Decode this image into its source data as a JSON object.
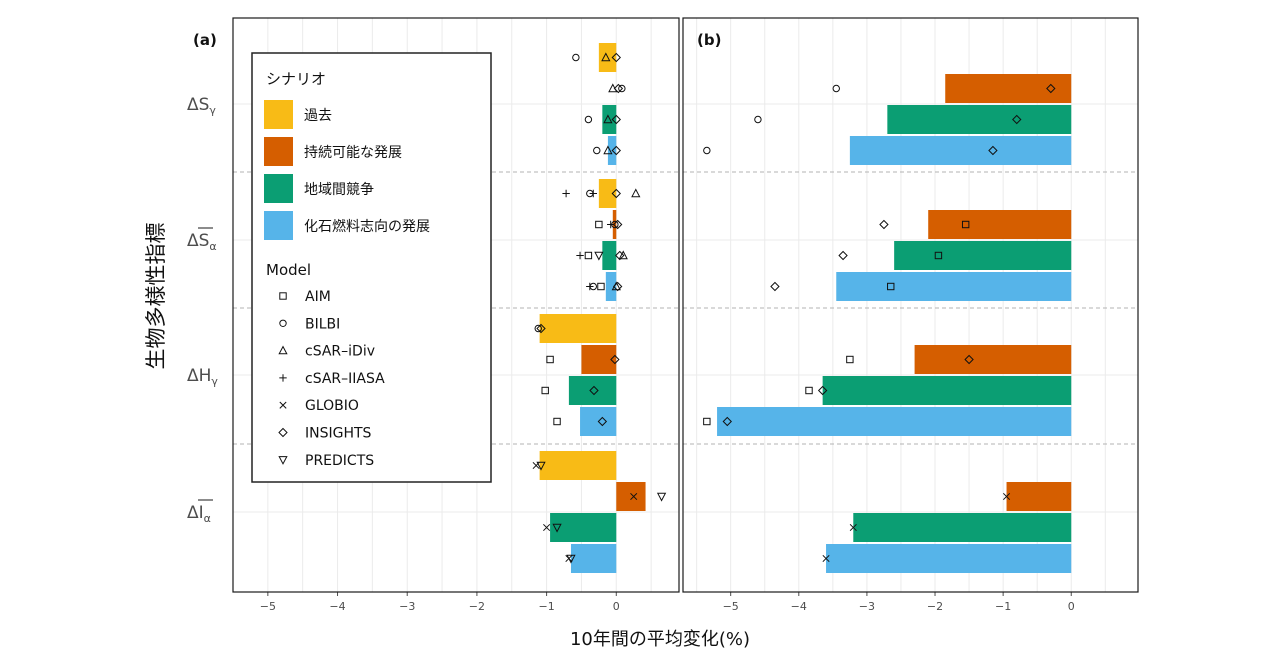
{
  "figure": {
    "xlabel": "10年間の平均変化(%)",
    "ylabel": "生物多様性指標"
  },
  "legend": {
    "scenario_title": "シナリオ",
    "model_title": "Model",
    "scenarios": [
      {
        "name": "過去",
        "color": "#F8BB16"
      },
      {
        "name": "持続可能な発展",
        "color": "#D55E00"
      },
      {
        "name": "地域間競争",
        "color": "#0B9E73"
      },
      {
        "name": "化石燃料志向の発展",
        "color": "#56B4E9"
      }
    ],
    "models": [
      {
        "name": "AIM",
        "symbol": "square"
      },
      {
        "name": "BILBI",
        "symbol": "circle"
      },
      {
        "name": "cSAR–iDiv",
        "symbol": "triangle-up"
      },
      {
        "name": "cSAR–IIASA",
        "symbol": "plus"
      },
      {
        "name": "GLOBIO",
        "symbol": "cross"
      },
      {
        "name": "INSIGHTS",
        "symbol": "diamond"
      },
      {
        "name": "PREDICTS",
        "symbol": "triangle-down"
      }
    ]
  },
  "chart_data": [
    {
      "type": "bar",
      "panel_label": "(a)",
      "xlim": [
        -5.5,
        0.9
      ],
      "x_ticks": [
        "−5",
        "−4",
        "−3",
        "−2",
        "−1",
        "0"
      ],
      "x_tick_values": [
        -5,
        -4,
        -3,
        -2,
        -1,
        0
      ],
      "grid": true,
      "indicators": [
        {
          "label": "ΔS",
          "sub": "γ",
          "overline": false
        },
        {
          "label": "ΔS",
          "sub": "α",
          "overline": true
        },
        {
          "label": "ΔH",
          "sub": "γ",
          "overline": false
        },
        {
          "label": "ΔI",
          "sub": "α",
          "overline": true
        }
      ],
      "series": [
        {
          "name": "過去",
          "values": [
            -0.25,
            -0.25,
            -1.1,
            -1.1
          ]
        },
        {
          "name": "持続可能な発展",
          "values": [
            null,
            -0.05,
            -0.5,
            0.42
          ]
        },
        {
          "name": "地域間競争",
          "values": [
            -0.2,
            -0.2,
            -0.68,
            -0.95
          ]
        },
        {
          "name": "化石燃料志向の発展",
          "values": [
            -0.12,
            -0.15,
            -0.52,
            -0.65
          ]
        }
      ],
      "points": [
        {
          "indicator": 0,
          "scenario": 0,
          "model": "BILBI",
          "x": -0.58
        },
        {
          "indicator": 0,
          "scenario": 0,
          "model": "cSAR–iDiv",
          "x": -0.15
        },
        {
          "indicator": 0,
          "scenario": 0,
          "model": "INSIGHTS",
          "x": 0.0
        },
        {
          "indicator": 0,
          "scenario": 1,
          "model": "cSAR–iDiv",
          "x": -0.05
        },
        {
          "indicator": 0,
          "scenario": 1,
          "model": "INSIGHTS",
          "x": 0.03
        },
        {
          "indicator": 0,
          "scenario": 1,
          "model": "BILBI",
          "x": 0.08
        },
        {
          "indicator": 0,
          "scenario": 2,
          "model": "BILBI",
          "x": -0.4
        },
        {
          "indicator": 0,
          "scenario": 2,
          "model": "cSAR–iDiv",
          "x": -0.12
        },
        {
          "indicator": 0,
          "scenario": 2,
          "model": "INSIGHTS",
          "x": 0.0
        },
        {
          "indicator": 0,
          "scenario": 3,
          "model": "BILBI",
          "x": -0.28
        },
        {
          "indicator": 0,
          "scenario": 3,
          "model": "cSAR–iDiv",
          "x": -0.12
        },
        {
          "indicator": 0,
          "scenario": 3,
          "model": "INSIGHTS",
          "x": 0.0
        },
        {
          "indicator": 1,
          "scenario": 0,
          "model": "cSAR–IIASA",
          "x": -0.72
        },
        {
          "indicator": 1,
          "scenario": 0,
          "model": "BILBI",
          "x": -0.38
        },
        {
          "indicator": 1,
          "scenario": 0,
          "model": "cSAR–IIASA",
          "x": -0.33
        },
        {
          "indicator": 1,
          "scenario": 0,
          "model": "INSIGHTS",
          "x": 0.0
        },
        {
          "indicator": 1,
          "scenario": 0,
          "model": "cSAR–iDiv",
          "x": 0.28
        },
        {
          "indicator": 1,
          "scenario": 1,
          "model": "AIM",
          "x": -0.25
        },
        {
          "indicator": 1,
          "scenario": 1,
          "model": "cSAR–IIASA",
          "x": -0.08
        },
        {
          "indicator": 1,
          "scenario": 1,
          "model": "BILBI",
          "x": -0.02
        },
        {
          "indicator": 1,
          "scenario": 1,
          "model": "INSIGHTS",
          "x": 0.02
        },
        {
          "indicator": 1,
          "scenario": 2,
          "model": "cSAR–IIASA",
          "x": -0.52
        },
        {
          "indicator": 1,
          "scenario": 2,
          "model": "AIM",
          "x": -0.4
        },
        {
          "indicator": 1,
          "scenario": 2,
          "model": "PREDICTS",
          "x": -0.25
        },
        {
          "indicator": 1,
          "scenario": 2,
          "model": "INSIGHTS",
          "x": 0.05
        },
        {
          "indicator": 1,
          "scenario": 2,
          "model": "cSAR–iDiv",
          "x": 0.1
        },
        {
          "indicator": 1,
          "scenario": 3,
          "model": "cSAR–IIASA",
          "x": -0.38
        },
        {
          "indicator": 1,
          "scenario": 3,
          "model": "BILBI",
          "x": -0.33
        },
        {
          "indicator": 1,
          "scenario": 3,
          "model": "AIM",
          "x": -0.22
        },
        {
          "indicator": 1,
          "scenario": 3,
          "model": "cSAR–iDiv",
          "x": 0.0
        },
        {
          "indicator": 1,
          "scenario": 3,
          "model": "INSIGHTS",
          "x": 0.02
        },
        {
          "indicator": 2,
          "scenario": 0,
          "model": "BILBI",
          "x": -1.12
        },
        {
          "indicator": 2,
          "scenario": 0,
          "model": "INSIGHTS",
          "x": -1.08
        },
        {
          "indicator": 2,
          "scenario": 1,
          "model": "AIM",
          "x": -0.95
        },
        {
          "indicator": 2,
          "scenario": 1,
          "model": "INSIGHTS",
          "x": -0.02
        },
        {
          "indicator": 2,
          "scenario": 2,
          "model": "AIM",
          "x": -1.02
        },
        {
          "indicator": 2,
          "scenario": 2,
          "model": "INSIGHTS",
          "x": -0.32
        },
        {
          "indicator": 2,
          "scenario": 3,
          "model": "AIM",
          "x": -0.85
        },
        {
          "indicator": 2,
          "scenario": 3,
          "model": "INSIGHTS",
          "x": -0.2
        },
        {
          "indicator": 3,
          "scenario": 0,
          "model": "GLOBIO",
          "x": -1.15
        },
        {
          "indicator": 3,
          "scenario": 0,
          "model": "PREDICTS",
          "x": -1.08
        },
        {
          "indicator": 3,
          "scenario": 1,
          "model": "GLOBIO",
          "x": 0.25
        },
        {
          "indicator": 3,
          "scenario": 1,
          "model": "PREDICTS",
          "x": 0.65
        },
        {
          "indicator": 3,
          "scenario": 2,
          "model": "GLOBIO",
          "x": -1.0
        },
        {
          "indicator": 3,
          "scenario": 2,
          "model": "PREDICTS",
          "x": -0.85
        },
        {
          "indicator": 3,
          "scenario": 3,
          "model": "GLOBIO",
          "x": -0.68
        },
        {
          "indicator": 3,
          "scenario": 3,
          "model": "PREDICTS",
          "x": -0.65
        }
      ]
    },
    {
      "type": "bar",
      "panel_label": "(b)",
      "xlim": [
        -5.7,
        0.98
      ],
      "x_ticks": [
        "−5",
        "−4",
        "−3",
        "−2",
        "−1",
        "0"
      ],
      "x_tick_values": [
        -5,
        -4,
        -3,
        -2,
        -1,
        0
      ],
      "grid": true,
      "series": [
        {
          "name": "過去",
          "values": [
            null,
            null,
            null,
            null
          ]
        },
        {
          "name": "持続可能な発展",
          "values": [
            -1.85,
            -2.1,
            -2.3,
            -0.95
          ]
        },
        {
          "name": "地域間競争",
          "values": [
            -2.7,
            -2.6,
            -3.65,
            -3.2
          ]
        },
        {
          "name": "化石燃料志向の発展",
          "values": [
            -3.25,
            -3.45,
            -5.2,
            -3.6
          ]
        }
      ],
      "points": [
        {
          "indicator": 0,
          "scenario": 1,
          "model": "BILBI",
          "x": -3.45
        },
        {
          "indicator": 0,
          "scenario": 1,
          "model": "INSIGHTS",
          "x": -0.3
        },
        {
          "indicator": 0,
          "scenario": 2,
          "model": "BILBI",
          "x": -4.6
        },
        {
          "indicator": 0,
          "scenario": 2,
          "model": "INSIGHTS",
          "x": -0.8
        },
        {
          "indicator": 0,
          "scenario": 3,
          "model": "BILBI",
          "x": -5.35
        },
        {
          "indicator": 0,
          "scenario": 3,
          "model": "INSIGHTS",
          "x": -1.15
        },
        {
          "indicator": 1,
          "scenario": 1,
          "model": "INSIGHTS",
          "x": -2.75
        },
        {
          "indicator": 1,
          "scenario": 1,
          "model": "AIM",
          "x": -1.55
        },
        {
          "indicator": 1,
          "scenario": 2,
          "model": "INSIGHTS",
          "x": -3.35
        },
        {
          "indicator": 1,
          "scenario": 2,
          "model": "AIM",
          "x": -1.95
        },
        {
          "indicator": 1,
          "scenario": 3,
          "model": "INSIGHTS",
          "x": -4.35
        },
        {
          "indicator": 1,
          "scenario": 3,
          "model": "AIM",
          "x": -2.65
        },
        {
          "indicator": 2,
          "scenario": 1,
          "model": "AIM",
          "x": -3.25
        },
        {
          "indicator": 2,
          "scenario": 1,
          "model": "INSIGHTS",
          "x": -1.5
        },
        {
          "indicator": 2,
          "scenario": 2,
          "model": "AIM",
          "x": -3.85
        },
        {
          "indicator": 2,
          "scenario": 2,
          "model": "INSIGHTS",
          "x": -3.65
        },
        {
          "indicator": 2,
          "scenario": 3,
          "model": "AIM",
          "x": -5.35
        },
        {
          "indicator": 2,
          "scenario": 3,
          "model": "INSIGHTS",
          "x": -5.05
        },
        {
          "indicator": 3,
          "scenario": 1,
          "model": "GLOBIO",
          "x": -0.95
        },
        {
          "indicator": 3,
          "scenario": 2,
          "model": "GLOBIO",
          "x": -3.2
        },
        {
          "indicator": 3,
          "scenario": 3,
          "model": "GLOBIO",
          "x": -3.6
        }
      ]
    }
  ]
}
